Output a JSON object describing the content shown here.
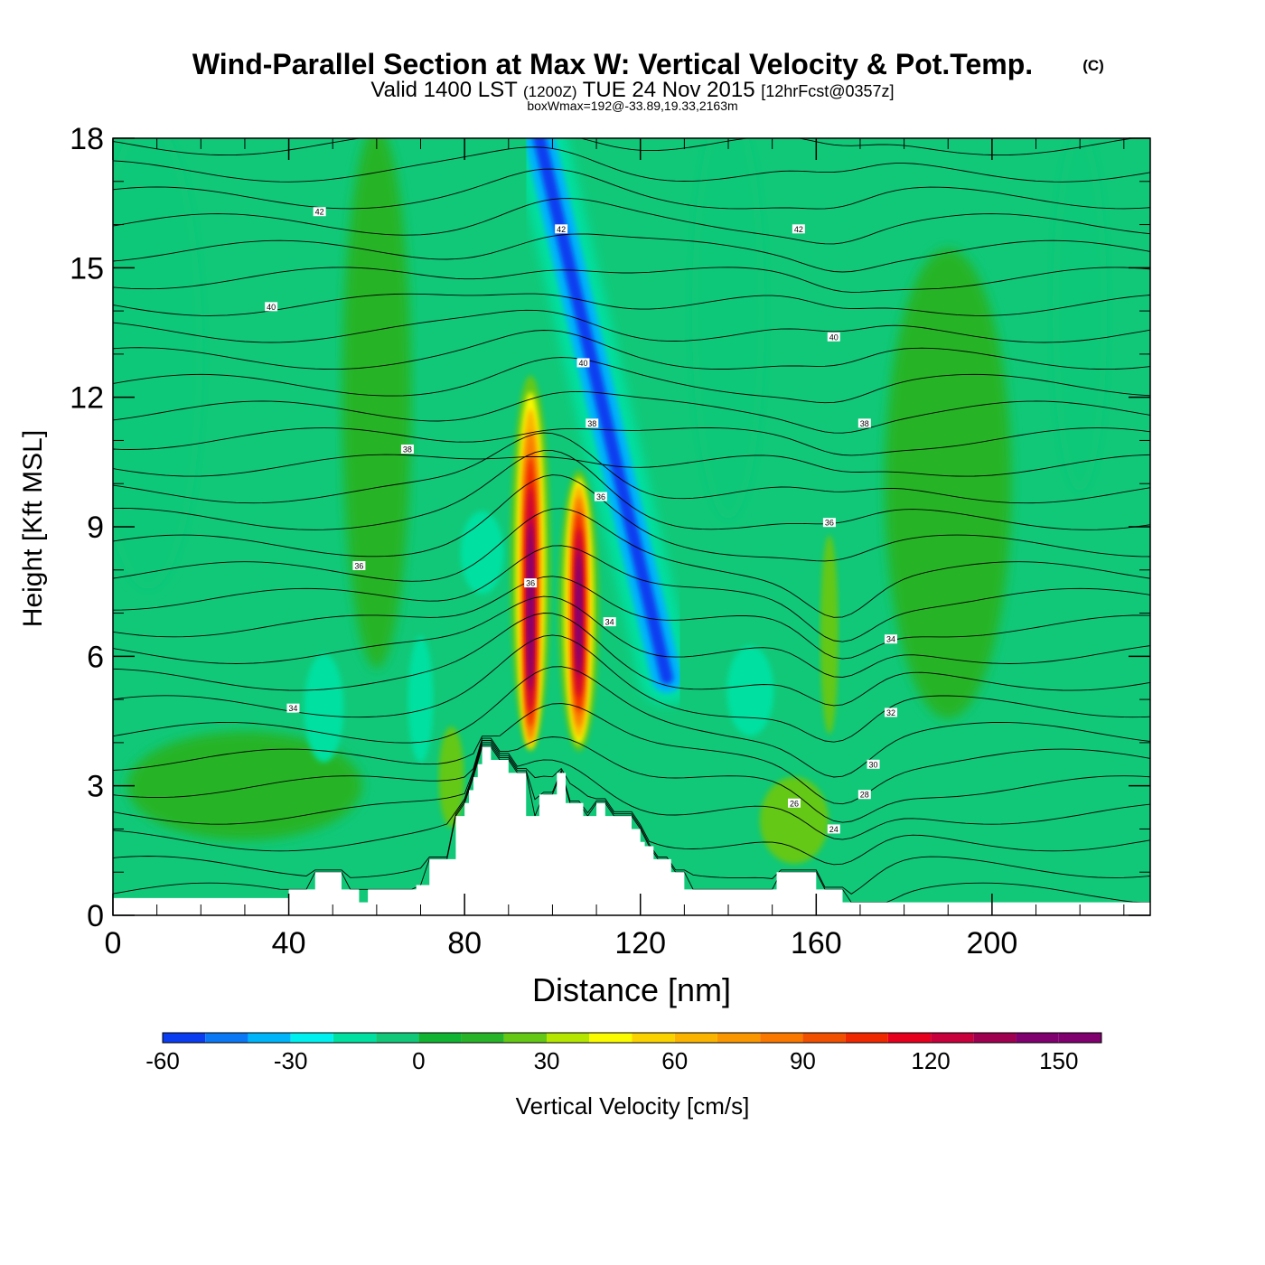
{
  "header": {
    "title": "Wind-Parallel Section at Max W: Vertical Velocity & Pot.Temp.",
    "copyright_mark": "(C)",
    "subtitle_pre": "Valid 1400 LST",
    "subtitle_utc": "(1200Z)",
    "subtitle_date": "TUE 24 Nov 2015",
    "subtitle_fcst": "[12hrFcst@0357z]",
    "box_info": "boxWmax=192@-33.89,19.33,2163m"
  },
  "colors": {
    "background_field": "#10C878",
    "terrain": "#ffffff",
    "contour_line": "#000000"
  },
  "chart_data": {
    "type": "heatmap",
    "xlabel": "Distance [nm]",
    "ylabel": "Height [Kft MSL]",
    "xlim": [
      0,
      236
    ],
    "ylim": [
      0,
      18
    ],
    "x_ticks": [
      0,
      40,
      80,
      120,
      160,
      200
    ],
    "y_ticks": [
      0,
      3,
      6,
      9,
      12,
      15,
      18
    ],
    "grid": false,
    "field": "Vertical Velocity [cm/s]",
    "overlay": "Potential temperature contours",
    "max_w": {
      "value": 192,
      "lat": -33.89,
      "lon": 19.33,
      "height_m": 2163
    },
    "colorbar": {
      "label": "Vertical Velocity [cm/s]",
      "tick_labels": [
        "-60",
        "-30",
        "0",
        "30",
        "60",
        "90",
        "120",
        "150"
      ],
      "tick_values": [
        -60,
        -30,
        0,
        30,
        60,
        90,
        120,
        150
      ],
      "bounds": [
        -60,
        160
      ],
      "step": 10,
      "colors": [
        "#0A00E6",
        "#0A3CF0",
        "#0A78F5",
        "#00B4FA",
        "#00F0F0",
        "#00E0A0",
        "#10C878",
        "#10B432",
        "#28B428",
        "#64C814",
        "#B4E600",
        "#FAFA00",
        "#FAD200",
        "#FAB400",
        "#FA9600",
        "#FA7800",
        "#F05000",
        "#F02800",
        "#E6001E",
        "#C8003C",
        "#A00050",
        "#800070"
      ]
    },
    "terrain_profile": {
      "x": [
        0,
        40,
        40,
        46,
        46,
        52,
        52,
        56,
        56,
        58,
        58,
        69,
        69,
        72,
        72,
        78,
        78,
        80,
        80,
        81,
        81,
        82,
        82,
        83,
        83,
        84,
        84,
        86,
        86,
        90,
        90,
        94,
        94,
        97,
        97,
        101,
        101,
        103,
        103,
        107,
        107,
        110,
        110,
        112,
        112,
        118,
        118,
        120,
        120,
        121,
        121,
        123,
        123,
        127,
        127,
        130,
        130,
        151,
        151,
        160,
        160,
        166,
        166,
        173,
        173,
        236
      ],
      "y": [
        0.4,
        0.4,
        0.6,
        0.6,
        1.0,
        1.0,
        0.6,
        0.6,
        0.3,
        0.3,
        0.6,
        0.6,
        0.7,
        0.7,
        1.3,
        1.3,
        2.3,
        2.3,
        2.6,
        2.6,
        2.9,
        2.9,
        3.2,
        3.2,
        3.5,
        3.5,
        3.9,
        3.9,
        3.6,
        3.6,
        3.3,
        3.3,
        2.3,
        2.3,
        2.8,
        2.8,
        3.3,
        3.3,
        2.6,
        2.6,
        2.3,
        2.3,
        2.6,
        2.6,
        2.3,
        2.3,
        2.0,
        2.0,
        1.7,
        1.7,
        1.6,
        1.6,
        1.3,
        1.3,
        1.0,
        1.0,
        0.6,
        0.6,
        1.0,
        1.0,
        0.6,
        0.6,
        0.3,
        0.3,
        0.3,
        0.3
      ]
    },
    "updrafts": [
      {
        "x": 95,
        "y_bottom": 3.8,
        "y_top": 12.5,
        "peak_y": 7.0,
        "max_w": 192
      },
      {
        "x": 106,
        "y_bottom": 3.8,
        "y_top": 10.3,
        "peak_y": 7.0,
        "max_w": 150
      }
    ],
    "downdraft": {
      "x_top": 97,
      "y_top": 18,
      "x_bottom": 126,
      "y_bottom": 5.5,
      "min_w": -60
    },
    "theta_contour_labels": [
      {
        "text": "42",
        "x": 47,
        "y": 16.3
      },
      {
        "text": "42",
        "x": 102,
        "y": 15.9
      },
      {
        "text": "42",
        "x": 156,
        "y": 15.9
      },
      {
        "text": "40",
        "x": 36,
        "y": 14.1
      },
      {
        "text": "40",
        "x": 107,
        "y": 12.8
      },
      {
        "text": "40",
        "x": 164,
        "y": 13.4
      },
      {
        "text": "38",
        "x": 67,
        "y": 10.8
      },
      {
        "text": "38",
        "x": 109,
        "y": 11.4
      },
      {
        "text": "38",
        "x": 171,
        "y": 11.4
      },
      {
        "text": "36",
        "x": 56,
        "y": 8.1
      },
      {
        "text": "36",
        "x": 111,
        "y": 9.7
      },
      {
        "text": "36",
        "x": 163,
        "y": 9.1
      },
      {
        "text": "36",
        "x": 95,
        "y": 7.7
      },
      {
        "text": "34",
        "x": 41,
        "y": 4.8
      },
      {
        "text": "34",
        "x": 113,
        "y": 6.8
      },
      {
        "text": "34",
        "x": 177,
        "y": 6.4
      },
      {
        "text": "32",
        "x": 177,
        "y": 4.7
      },
      {
        "text": "30",
        "x": 173,
        "y": 3.5
      },
      {
        "text": "28",
        "x": 171,
        "y": 2.8
      },
      {
        "text": "26",
        "x": 155,
        "y": 2.6
      },
      {
        "text": "24",
        "x": 164,
        "y": 2.0
      }
    ]
  }
}
